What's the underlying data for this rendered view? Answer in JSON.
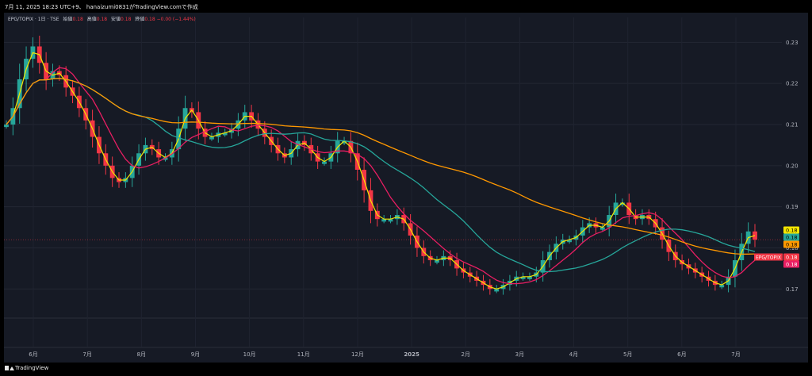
{
  "header": {
    "text": "7月 11, 2025 18:23 UTC+9、 hanaizumi0831がTradingView.comで作成"
  },
  "legend": {
    "title": "EPG/TOPIX · 1日 · TSE",
    "open_label": "始値",
    "open": "0.18",
    "high_label": "高値",
    "high": "0.18",
    "low_label": "安値",
    "low": "0.18",
    "close_label": "終値",
    "close": "0.18",
    "change": "−0.00 (−1.44%)"
  },
  "footer": {
    "brand": "TradingView"
  },
  "colors": {
    "background": "#161a25",
    "up": "#26a69a",
    "down": "#f23645",
    "ma_short": "#f5e600",
    "ma_mid": "#e91e63",
    "ma_long": "#26a69a",
    "ma_longest": "#ff9800"
  },
  "price_tags": [
    {
      "label": "",
      "value": "0.18",
      "bg": "#f5e600",
      "fg": "#000000"
    },
    {
      "label": "",
      "value": "0.18",
      "bg": "#26a69a",
      "fg": "#000000"
    },
    {
      "label": "",
      "value": "0.18",
      "bg": "#ff9800",
      "fg": "#000000"
    },
    {
      "label": "EPG/TOPIX",
      "value": "0.18",
      "bg": "#f23645",
      "fg": "#ffffff"
    },
    {
      "label": "",
      "value": "0.18",
      "bg": "#e91e63",
      "fg": "#ffffff"
    }
  ],
  "chart_data": {
    "type": "candlestick",
    "title": "EPG/TOPIX · 1日 · TSE",
    "x_ticks": [
      "6月",
      "7月",
      "8月",
      "9月",
      "10月",
      "11月",
      "12月",
      "2025",
      "2月",
      "3月",
      "4月",
      "5月",
      "6月",
      "7月"
    ],
    "y_ticks": [
      0.23,
      0.22,
      0.21,
      0.2,
      0.19,
      0.18,
      0.17
    ],
    "y_tick_labels": [
      "0.23",
      "0.22",
      "0.21",
      "0.20",
      "0.19",
      "0.18",
      "0.17"
    ],
    "ylim": [
      0.1635,
      0.2345
    ],
    "grid": true,
    "close_series": [
      0.21,
      0.214,
      0.221,
      0.226,
      0.229,
      0.225,
      0.221,
      0.223,
      0.222,
      0.219,
      0.217,
      0.214,
      0.211,
      0.207,
      0.203,
      0.2,
      0.197,
      0.196,
      0.197,
      0.2,
      0.203,
      0.205,
      0.204,
      0.202,
      0.202,
      0.204,
      0.209,
      0.214,
      0.213,
      0.209,
      0.207,
      0.207,
      0.208,
      0.208,
      0.209,
      0.211,
      0.213,
      0.211,
      0.209,
      0.207,
      0.205,
      0.203,
      0.202,
      0.204,
      0.206,
      0.205,
      0.203,
      0.201,
      0.201,
      0.203,
      0.206,
      0.206,
      0.203,
      0.199,
      0.194,
      0.189,
      0.187,
      0.187,
      0.187,
      0.188,
      0.186,
      0.183,
      0.18,
      0.178,
      0.177,
      0.177,
      0.178,
      0.177,
      0.175,
      0.174,
      0.173,
      0.172,
      0.171,
      0.17,
      0.17,
      0.171,
      0.172,
      0.173,
      0.173,
      0.173,
      0.174,
      0.177,
      0.179,
      0.181,
      0.182,
      0.182,
      0.183,
      0.185,
      0.186,
      0.185,
      0.185,
      0.188,
      0.191,
      0.191,
      0.188,
      0.187,
      0.188,
      0.187,
      0.185,
      0.182,
      0.179,
      0.177,
      0.176,
      0.175,
      0.174,
      0.173,
      0.172,
      0.171,
      0.171,
      0.173,
      0.177,
      0.181,
      0.184,
      0.182
    ],
    "moving_averages": [
      {
        "name": "",
        "color": "#f5e600",
        "window": 5,
        "last": "0.18"
      },
      {
        "name": "",
        "color": "#e91e63",
        "window": 25,
        "last": "0.18"
      },
      {
        "name": "",
        "color": "#26a69a",
        "window": 75,
        "last": "0.18"
      },
      {
        "name": "",
        "color": "#ff9800",
        "window": 200,
        "last": "0.18"
      }
    ]
  }
}
